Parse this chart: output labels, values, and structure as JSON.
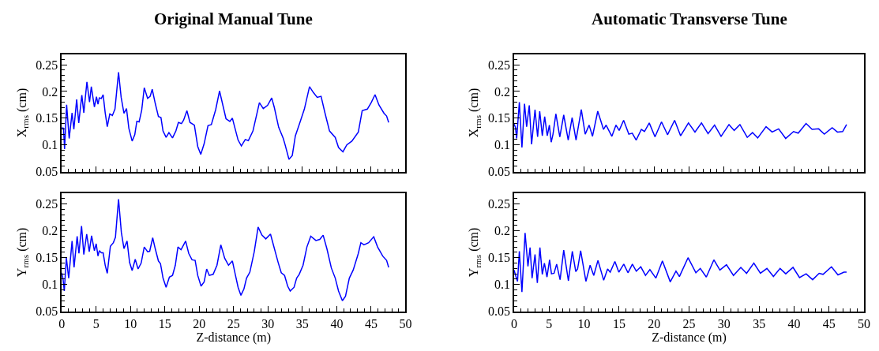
{
  "chart_data": [
    {
      "type": "line",
      "title": "Original Manual Tune",
      "ylabel": "X$_{rms}$ (cm)",
      "xlim": [
        0,
        50
      ],
      "ylim": [
        0.05,
        0.27
      ],
      "xticks": [
        0,
        5,
        10,
        15,
        20,
        25,
        30,
        35,
        40,
        45,
        50
      ],
      "yticks": [
        0.05,
        0.1,
        0.15,
        0.2,
        0.25
      ],
      "tick_labels": "y",
      "x": [
        0,
        0.26,
        0.41,
        0.71,
        1.08,
        1.5,
        1.76,
        2.17,
        2.47,
        2.92,
        3.21,
        3.66,
        4.04,
        4.3,
        4.75,
        5.05,
        5.27,
        5.46,
        5.76,
        6.02,
        6.32,
        6.62,
        6.99,
        7.36,
        7.74,
        8.26,
        8.64,
        9.05,
        9.42,
        9.76,
        10.24,
        10.62,
        10.92,
        11.25,
        11.63,
        12.0,
        12.49,
        12.86,
        13.16,
        13.61,
        14.06,
        14.43,
        14.73,
        15.18,
        15.59,
        16.11,
        16.6,
        16.97,
        17.42,
        17.72,
        18.21,
        18.65,
        19.29,
        19.78,
        20.22,
        20.71,
        21.27,
        21.76,
        22.39,
        22.95,
        23.33,
        23.89,
        24.45,
        24.82,
        25.2,
        25.65,
        26.13,
        26.69,
        27.14,
        27.81,
        28.75,
        29.31,
        29.94,
        30.54,
        30.92,
        31.55,
        32.22,
        32.49,
        33.05,
        33.53,
        33.98,
        34.54,
        35.29,
        36.04,
        36.6,
        37.16,
        37.72,
        38.28,
        38.95,
        39.78,
        40.26,
        40.9,
        41.46,
        42.2,
        43.14,
        43.7,
        44.45,
        45.01,
        45.57,
        46.13,
        46.88,
        47.25,
        47.55
      ],
      "series": [
        {
          "color": "#0000ff",
          "values": [
            0.132,
            0.131,
            0.092,
            0.175,
            0.112,
            0.16,
            0.129,
            0.185,
            0.141,
            0.193,
            0.16,
            0.218,
            0.18,
            0.209,
            0.171,
            0.19,
            0.176,
            0.188,
            0.187,
            0.194,
            0.16,
            0.134,
            0.158,
            0.155,
            0.167,
            0.236,
            0.189,
            0.159,
            0.168,
            0.131,
            0.107,
            0.119,
            0.144,
            0.143,
            0.165,
            0.207,
            0.187,
            0.191,
            0.204,
            0.177,
            0.153,
            0.151,
            0.126,
            0.114,
            0.123,
            0.113,
            0.126,
            0.142,
            0.14,
            0.146,
            0.164,
            0.142,
            0.137,
            0.097,
            0.082,
            0.102,
            0.136,
            0.138,
            0.166,
            0.201,
            0.18,
            0.149,
            0.144,
            0.15,
            0.131,
            0.109,
            0.098,
            0.11,
            0.108,
            0.126,
            0.179,
            0.168,
            0.174,
            0.188,
            0.17,
            0.133,
            0.112,
            0.1,
            0.073,
            0.08,
            0.117,
            0.138,
            0.167,
            0.209,
            0.198,
            0.189,
            0.191,
            0.16,
            0.126,
            0.114,
            0.095,
            0.087,
            0.1,
            0.107,
            0.124,
            0.164,
            0.167,
            0.179,
            0.194,
            0.175,
            0.159,
            0.154,
            0.142
          ]
        }
      ]
    },
    {
      "type": "line",
      "title": "Automatic Transverse Tune",
      "ylabel": "X$_{rms}$ (cm)",
      "xlim": [
        0,
        50
      ],
      "ylim": [
        0.05,
        0.27
      ],
      "xticks": [
        0,
        5,
        10,
        15,
        20,
        25,
        30,
        35,
        40,
        45,
        50
      ],
      "yticks": [
        0.05,
        0.1,
        0.15,
        0.2,
        0.25
      ],
      "tick_labels": "y",
      "x": [
        0,
        0.19,
        0.37,
        0.75,
        1.12,
        1.49,
        1.79,
        2.17,
        2.5,
        2.99,
        3.36,
        3.66,
        4.03,
        4.37,
        4.74,
        5.04,
        5.3,
        5.56,
        5.97,
        6.53,
        7.09,
        7.73,
        8.29,
        8.85,
        9.6,
        10.16,
        10.72,
        11.2,
        11.95,
        12.77,
        13.14,
        13.97,
        14.56,
        15.01,
        15.65,
        16.39,
        16.88,
        17.44,
        18.18,
        18.63,
        19.31,
        20.13,
        21.06,
        21.92,
        22.93,
        23.79,
        24.91,
        25.84,
        26.77,
        27.71,
        28.64,
        29.57,
        30.7,
        31.44,
        32.26,
        33.31,
        34.06,
        34.8,
        36.0,
        36.86,
        37.79,
        38.8,
        39.92,
        40.59,
        41.71,
        42.57,
        43.51,
        44.32,
        45.44,
        46.19,
        46.94,
        47.5
      ],
      "series": [
        {
          "color": "#0000ff",
          "values": [
            0.139,
            0.133,
            0.112,
            0.18,
            0.095,
            0.177,
            0.134,
            0.174,
            0.101,
            0.166,
            0.115,
            0.163,
            0.117,
            0.153,
            0.117,
            0.137,
            0.105,
            0.12,
            0.158,
            0.115,
            0.156,
            0.109,
            0.151,
            0.109,
            0.166,
            0.12,
            0.137,
            0.116,
            0.163,
            0.129,
            0.137,
            0.116,
            0.137,
            0.127,
            0.146,
            0.12,
            0.122,
            0.109,
            0.129,
            0.125,
            0.141,
            0.115,
            0.143,
            0.119,
            0.146,
            0.117,
            0.141,
            0.124,
            0.141,
            0.121,
            0.137,
            0.116,
            0.138,
            0.127,
            0.138,
            0.114,
            0.123,
            0.113,
            0.134,
            0.124,
            0.13,
            0.112,
            0.125,
            0.122,
            0.14,
            0.129,
            0.13,
            0.12,
            0.132,
            0.124,
            0.125,
            0.138
          ]
        }
      ]
    },
    {
      "type": "line",
      "xlabel": "Z-distance (m)",
      "ylabel": "Y$_{rms}$ (cm)",
      "xlim": [
        0,
        50
      ],
      "ylim": [
        0.05,
        0.27
      ],
      "xticks": [
        0,
        5,
        10,
        15,
        20,
        25,
        30,
        35,
        40,
        45,
        50
      ],
      "yticks": [
        0.05,
        0.1,
        0.15,
        0.2,
        0.25
      ],
      "x": [
        0,
        0.19,
        0.37,
        0.67,
        1.01,
        1.5,
        1.79,
        2.24,
        2.5,
        2.88,
        3.21,
        3.63,
        4.0,
        4.34,
        4.75,
        5.01,
        5.27,
        5.46,
        5.76,
        6.02,
        6.32,
        6.62,
        7.07,
        7.51,
        7.81,
        8.26,
        8.67,
        9.05,
        9.5,
        9.87,
        10.24,
        10.69,
        11.1,
        11.55,
        12.0,
        12.49,
        12.79,
        13.23,
        13.61,
        14.06,
        14.36,
        14.73,
        15.18,
        15.66,
        16.11,
        16.52,
        16.9,
        17.35,
        18.02,
        18.47,
        18.95,
        19.4,
        19.78,
        20.26,
        20.71,
        21.08,
        21.46,
        22.02,
        22.58,
        23.14,
        23.7,
        24.26,
        24.82,
        25.27,
        25.65,
        26.06,
        26.5,
        26.88,
        27.36,
        28.0,
        28.56,
        29.12,
        29.68,
        30.36,
        30.8,
        31.48,
        31.93,
        32.41,
        32.86,
        33.23,
        33.79,
        34.17,
        34.54,
        35.1,
        35.66,
        36.22,
        36.97,
        37.53,
        38.02,
        38.58,
        39.21,
        39.78,
        40.26,
        40.82,
        41.27,
        41.83,
        42.39,
        43.14,
        43.51,
        43.96,
        44.64,
        45.38,
        45.94,
        46.69,
        47.25,
        47.55
      ],
      "series": [
        {
          "color": "#0000ff",
          "values": [
            0.122,
            0.11,
            0.088,
            0.15,
            0.112,
            0.181,
            0.132,
            0.19,
            0.158,
            0.209,
            0.156,
            0.194,
            0.161,
            0.191,
            0.163,
            0.176,
            0.153,
            0.163,
            0.159,
            0.159,
            0.136,
            0.121,
            0.171,
            0.178,
            0.188,
            0.259,
            0.197,
            0.167,
            0.181,
            0.141,
            0.126,
            0.147,
            0.129,
            0.14,
            0.17,
            0.161,
            0.162,
            0.187,
            0.166,
            0.144,
            0.139,
            0.112,
            0.095,
            0.114,
            0.117,
            0.136,
            0.17,
            0.165,
            0.181,
            0.158,
            0.146,
            0.145,
            0.117,
            0.097,
            0.105,
            0.129,
            0.117,
            0.119,
            0.136,
            0.174,
            0.149,
            0.136,
            0.144,
            0.117,
            0.095,
            0.08,
            0.092,
            0.112,
            0.123,
            0.161,
            0.207,
            0.192,
            0.185,
            0.194,
            0.173,
            0.141,
            0.122,
            0.117,
            0.097,
            0.088,
            0.095,
            0.112,
            0.119,
            0.136,
            0.17,
            0.19,
            0.182,
            0.184,
            0.192,
            0.166,
            0.131,
            0.112,
            0.088,
            0.07,
            0.078,
            0.112,
            0.127,
            0.158,
            0.178,
            0.174,
            0.178,
            0.189,
            0.17,
            0.153,
            0.145,
            0.132
          ]
        }
      ]
    },
    {
      "type": "line",
      "xlabel": "Z-distance (m)",
      "ylabel": "Y$_{rms}$ (cm)",
      "xlim": [
        0,
        50
      ],
      "ylim": [
        0.05,
        0.27
      ],
      "xticks": [
        0,
        5,
        10,
        15,
        20,
        25,
        30,
        35,
        40,
        45,
        50
      ],
      "yticks": [
        0.05,
        0.1,
        0.15,
        0.2,
        0.25
      ],
      "x": [
        0,
        0.26,
        0.49,
        0.75,
        1.12,
        1.57,
        1.98,
        2.28,
        2.57,
        2.99,
        3.32,
        3.69,
        4.03,
        4.33,
        4.7,
        5.07,
        5.34,
        5.71,
        6.08,
        6.57,
        7.09,
        7.76,
        8.32,
        8.81,
        9.07,
        9.51,
        10.26,
        10.86,
        11.38,
        11.98,
        12.8,
        13.36,
        13.73,
        14.4,
        14.96,
        15.67,
        16.27,
        16.9,
        17.46,
        18.1,
        18.77,
        19.4,
        20.26,
        21.19,
        22.31,
        23.13,
        23.62,
        24.85,
        25.97,
        26.6,
        27.46,
        28.54,
        29.4,
        30.34,
        31.34,
        32.39,
        33.21,
        34.25,
        35.19,
        36.12,
        37.05,
        38.0,
        38.81,
        39.85,
        40.78,
        41.72,
        42.65,
        43.58,
        44.14,
        45.34,
        46.27,
        47.13,
        47.5
      ],
      "series": [
        {
          "color": "#0000ff",
          "values": [
            0.127,
            0.115,
            0.106,
            0.162,
            0.086,
            0.196,
            0.134,
            0.169,
            0.112,
            0.156,
            0.103,
            0.169,
            0.119,
            0.14,
            0.114,
            0.146,
            0.12,
            0.121,
            0.138,
            0.109,
            0.164,
            0.107,
            0.162,
            0.124,
            0.129,
            0.163,
            0.106,
            0.136,
            0.117,
            0.145,
            0.108,
            0.129,
            0.123,
            0.143,
            0.123,
            0.138,
            0.122,
            0.138,
            0.125,
            0.133,
            0.117,
            0.128,
            0.112,
            0.144,
            0.105,
            0.125,
            0.115,
            0.15,
            0.122,
            0.13,
            0.114,
            0.146,
            0.127,
            0.137,
            0.117,
            0.132,
            0.121,
            0.14,
            0.121,
            0.13,
            0.115,
            0.13,
            0.12,
            0.132,
            0.113,
            0.12,
            0.109,
            0.121,
            0.119,
            0.133,
            0.118,
            0.123,
            0.123
          ]
        }
      ]
    }
  ]
}
